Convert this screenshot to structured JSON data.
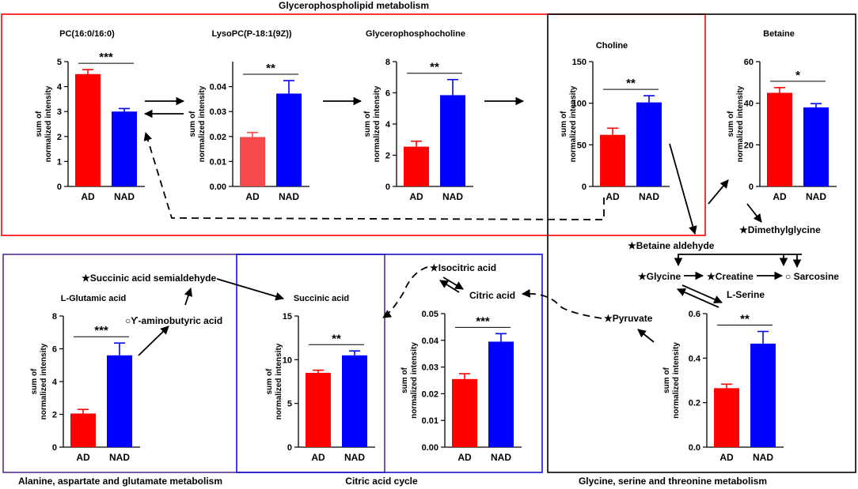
{
  "colors": {
    "ad": "#ff0000",
    "ad_light": "#f44a4a",
    "nad": "#0000ff",
    "glycerophospholipid_box": "#ff0000",
    "alanine_box": "#5b2b91",
    "citric_box": "#1414d2",
    "glycine_box": "#000000"
  },
  "pathways": {
    "glycerophospholipid": "Glycerophospholipid metabolism",
    "alanine": "Alanine, aspartate and glutamate metabolism",
    "citric": "Citric acid cycle",
    "glycine": "Glycine, serine and threonine metabolism"
  },
  "metabolite_labels": {
    "succinic_semialdehyde": "★Succinic acid semialdehyde",
    "gaba": "○ϒ-aminobutyric acid",
    "isocitric": "★Isocitric acid",
    "citric": "Citric acid",
    "pyruvate": "★Pyruvate",
    "betaine_aldehyde": "★Betaine aldehyde",
    "dimethylglycine": "★Dimethylglycine",
    "glycine": "★Glycine",
    "creatine": "★Creatine",
    "sarcosine": "○ Sarcosine",
    "serine": "L-Serine"
  },
  "ylabel_lines": [
    "sum of",
    "normalized intensity"
  ],
  "chart_data": [
    {
      "id": "pc",
      "type": "bar",
      "title": "PC(16:0/16:0)",
      "categories": [
        "AD",
        "NAD"
      ],
      "values": [
        4.5,
        3.0
      ],
      "errors": [
        0.18,
        0.12
      ],
      "ylim": [
        0,
        5
      ],
      "yticks": [
        "0",
        "1",
        "2",
        "3",
        "4",
        "5"
      ],
      "significance": "***"
    },
    {
      "id": "lysopc",
      "type": "bar",
      "title": "LysoPC(P-18:1(9Z))",
      "categories": [
        "AD",
        "NAD"
      ],
      "values": [
        0.0198,
        0.0372
      ],
      "errors": [
        0.0018,
        0.0052
      ],
      "ylim": [
        0,
        0.05
      ],
      "yticks": [
        "0.00",
        "0.01",
        "0.02",
        "0.03",
        "0.04"
      ],
      "significance": "**"
    },
    {
      "id": "gpc",
      "type": "bar",
      "title": "Glycerophosphocholine",
      "categories": [
        "AD",
        "NAD"
      ],
      "values": [
        2.55,
        5.85
      ],
      "errors": [
        0.35,
        1.0
      ],
      "ylim": [
        0,
        8
      ],
      "yticks": [
        "0",
        "2",
        "4",
        "6",
        "8"
      ],
      "significance": "**"
    },
    {
      "id": "choline",
      "type": "bar",
      "title": "Choline",
      "categories": [
        "AD",
        "NAD"
      ],
      "values": [
        62,
        101
      ],
      "errors": [
        8,
        8
      ],
      "ylim": [
        0,
        150
      ],
      "yticks": [
        "0",
        "50",
        "100",
        "150"
      ],
      "significance": "**"
    },
    {
      "id": "betaine",
      "type": "bar",
      "title": "Betaine",
      "categories": [
        "AD",
        "NAD"
      ],
      "values": [
        45,
        38
      ],
      "errors": [
        2.5,
        1.8
      ],
      "ylim": [
        0,
        60
      ],
      "yticks": [
        "0",
        "20",
        "40",
        "60"
      ],
      "significance": "*"
    },
    {
      "id": "glutamic",
      "type": "bar",
      "title": "L-Glutamic acid",
      "categories": [
        "AD",
        "NAD"
      ],
      "values": [
        2.05,
        5.6
      ],
      "errors": [
        0.25,
        0.75
      ],
      "ylim": [
        0,
        8
      ],
      "yticks": [
        "0",
        "2",
        "4",
        "6",
        "8"
      ],
      "significance": "***"
    },
    {
      "id": "succinic",
      "type": "bar",
      "title": "Succinic acid",
      "categories": [
        "AD",
        "NAD"
      ],
      "values": [
        8.5,
        10.5
      ],
      "errors": [
        0.3,
        0.5
      ],
      "ylim": [
        0,
        15
      ],
      "yticks": [
        "0",
        "5",
        "10",
        "15"
      ],
      "significance": "**"
    },
    {
      "id": "citric",
      "type": "bar",
      "title": "",
      "categories": [
        "AD",
        "NAD"
      ],
      "values": [
        0.0255,
        0.0395
      ],
      "errors": [
        0.002,
        0.003
      ],
      "ylim": [
        0,
        0.05
      ],
      "yticks": [
        "0.00",
        "0.01",
        "0.02",
        "0.03",
        "0.04",
        "0.05"
      ],
      "significance": "***"
    },
    {
      "id": "serine",
      "type": "bar",
      "title": "",
      "categories": [
        "AD",
        "NAD"
      ],
      "values": [
        0.265,
        0.465
      ],
      "errors": [
        0.018,
        0.055
      ],
      "ylim": [
        0,
        0.6
      ],
      "yticks": [
        "0.0",
        "0.2",
        "0.4",
        "0.6"
      ],
      "significance": "**"
    }
  ]
}
